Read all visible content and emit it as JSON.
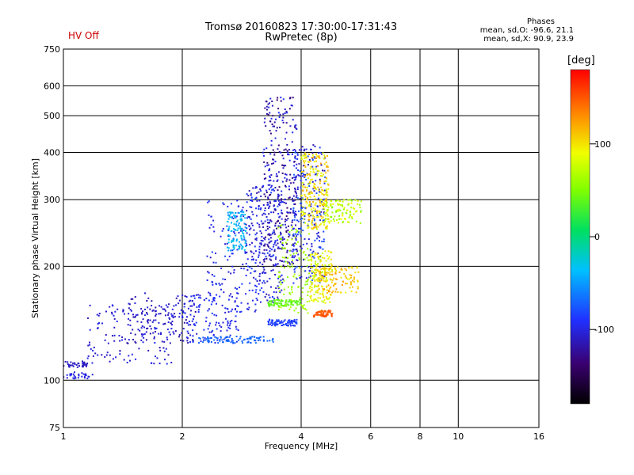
{
  "header": {
    "hv_status": "HV Off",
    "title_line1": "Tromsø 20160823 17:30:00-17:31:43",
    "title_line2": "RwPretec (8p)",
    "stats_title": "Phases",
    "stats_o": "mean, sd,O: -96.6, 21.1",
    "stats_x": "mean, sd,X:  90.9, 23.9"
  },
  "colorbar": {
    "unit": "[deg]",
    "ticks": [
      "100",
      "0",
      "-100"
    ],
    "tick_values": [
      100,
      0,
      -100
    ],
    "range": [
      -180,
      180
    ]
  },
  "chart_data": {
    "type": "scatter",
    "title": "Tromsø 20160823 17:30:00-17:31:43",
    "subtitle": "RwPretec (8p)",
    "xlabel": "Frequency [MHz]",
    "ylabel": "Stationary phase Virtual Height [km]",
    "x_scale": "log",
    "y_scale": "log",
    "xlim": [
      1,
      16
    ],
    "ylim": [
      75,
      750
    ],
    "x_ticks": [
      1,
      2,
      4,
      6,
      8,
      10,
      16
    ],
    "x_tick_labels": [
      "1",
      "2",
      "4",
      "6",
      "8",
      "10",
      "16"
    ],
    "x_minor_gridlines": [
      1,
      2,
      4,
      6,
      8,
      10
    ],
    "y_ticks": [
      75,
      100,
      200,
      300,
      400,
      500,
      600,
      750
    ],
    "y_tick_labels": [
      "75",
      "100",
      "200",
      "300",
      "400",
      "500",
      "600",
      "750"
    ],
    "grid": true,
    "color_variable": "Phase [deg]",
    "traces": [
      {
        "f_range": [
          1.0,
          1.15
        ],
        "h": 110,
        "phase": -110,
        "spread": 4,
        "n": 40
      },
      {
        "f_range": [
          1.0,
          1.2
        ],
        "h": 103,
        "phase": -100,
        "spread": 3,
        "n": 30
      },
      {
        "f_range": [
          1.15,
          1.9
        ],
        "h_range": [
          110,
          160
        ],
        "phase": -105,
        "spread": 10,
        "n": 140
      },
      {
        "f_range": [
          1.45,
          2.2
        ],
        "h_range": [
          125,
          170
        ],
        "phase": -110,
        "spread": 12,
        "n": 120
      },
      {
        "f_range": [
          2.0,
          2.8
        ],
        "h_range": [
          125,
          170
        ],
        "phase": -95,
        "spread": 10,
        "n": 120
      },
      {
        "f_range": [
          2.2,
          3.4
        ],
        "h": 128,
        "phase": -70,
        "spread": 4,
        "n": 90
      },
      {
        "f_range": [
          2.3,
          3.2
        ],
        "h_range": [
          150,
          300
        ],
        "phase": -95,
        "spread": 14,
        "n": 160
      },
      {
        "f_range": [
          2.6,
          2.9
        ],
        "h_range": [
          220,
          280
        ],
        "phase": -40,
        "spread": 15,
        "n": 110
      },
      {
        "f_range": [
          2.9,
          3.6
        ],
        "h_range": [
          160,
          330
        ],
        "phase": -100,
        "spread": 20,
        "n": 220
      },
      {
        "f_range": [
          3.2,
          3.9
        ],
        "h_range": [
          200,
          560
        ],
        "phase": -115,
        "spread": 25,
        "n": 300
      },
      {
        "f_range": [
          3.3,
          3.9
        ],
        "h": 142,
        "phase": -85,
        "spread": 4,
        "n": 80
      },
      {
        "f_range": [
          3.3,
          4.0
        ],
        "h": 160,
        "phase": 40,
        "spread": 6,
        "n": 80
      },
      {
        "f_range": [
          3.5,
          4.2
        ],
        "h_range": [
          150,
          260
        ],
        "phase": 60,
        "spread": 10,
        "n": 120
      },
      {
        "f_range": [
          3.8,
          4.6
        ],
        "h_range": [
          180,
          420
        ],
        "phase": -95,
        "spread": 25,
        "n": 260
      },
      {
        "f_range": [
          4.0,
          4.7
        ],
        "h_range": [
          250,
          400
        ],
        "phase": 100,
        "spread": 25,
        "n": 240
      },
      {
        "f_range": [
          4.2,
          4.8
        ],
        "h_range": [
          160,
          220
        ],
        "phase": 90,
        "spread": 20,
        "n": 150
      },
      {
        "f_range": [
          4.3,
          4.8
        ],
        "h": 150,
        "phase": 150,
        "spread": 8,
        "n": 70
      },
      {
        "f_range": [
          4.4,
          5.6
        ],
        "h_range": [
          170,
          200
        ],
        "phase": 110,
        "spread": 20,
        "n": 120
      },
      {
        "f_range": [
          4.5,
          5.7
        ],
        "h_range": [
          260,
          300
        ],
        "phase": 70,
        "spread": 25,
        "n": 100
      }
    ]
  }
}
